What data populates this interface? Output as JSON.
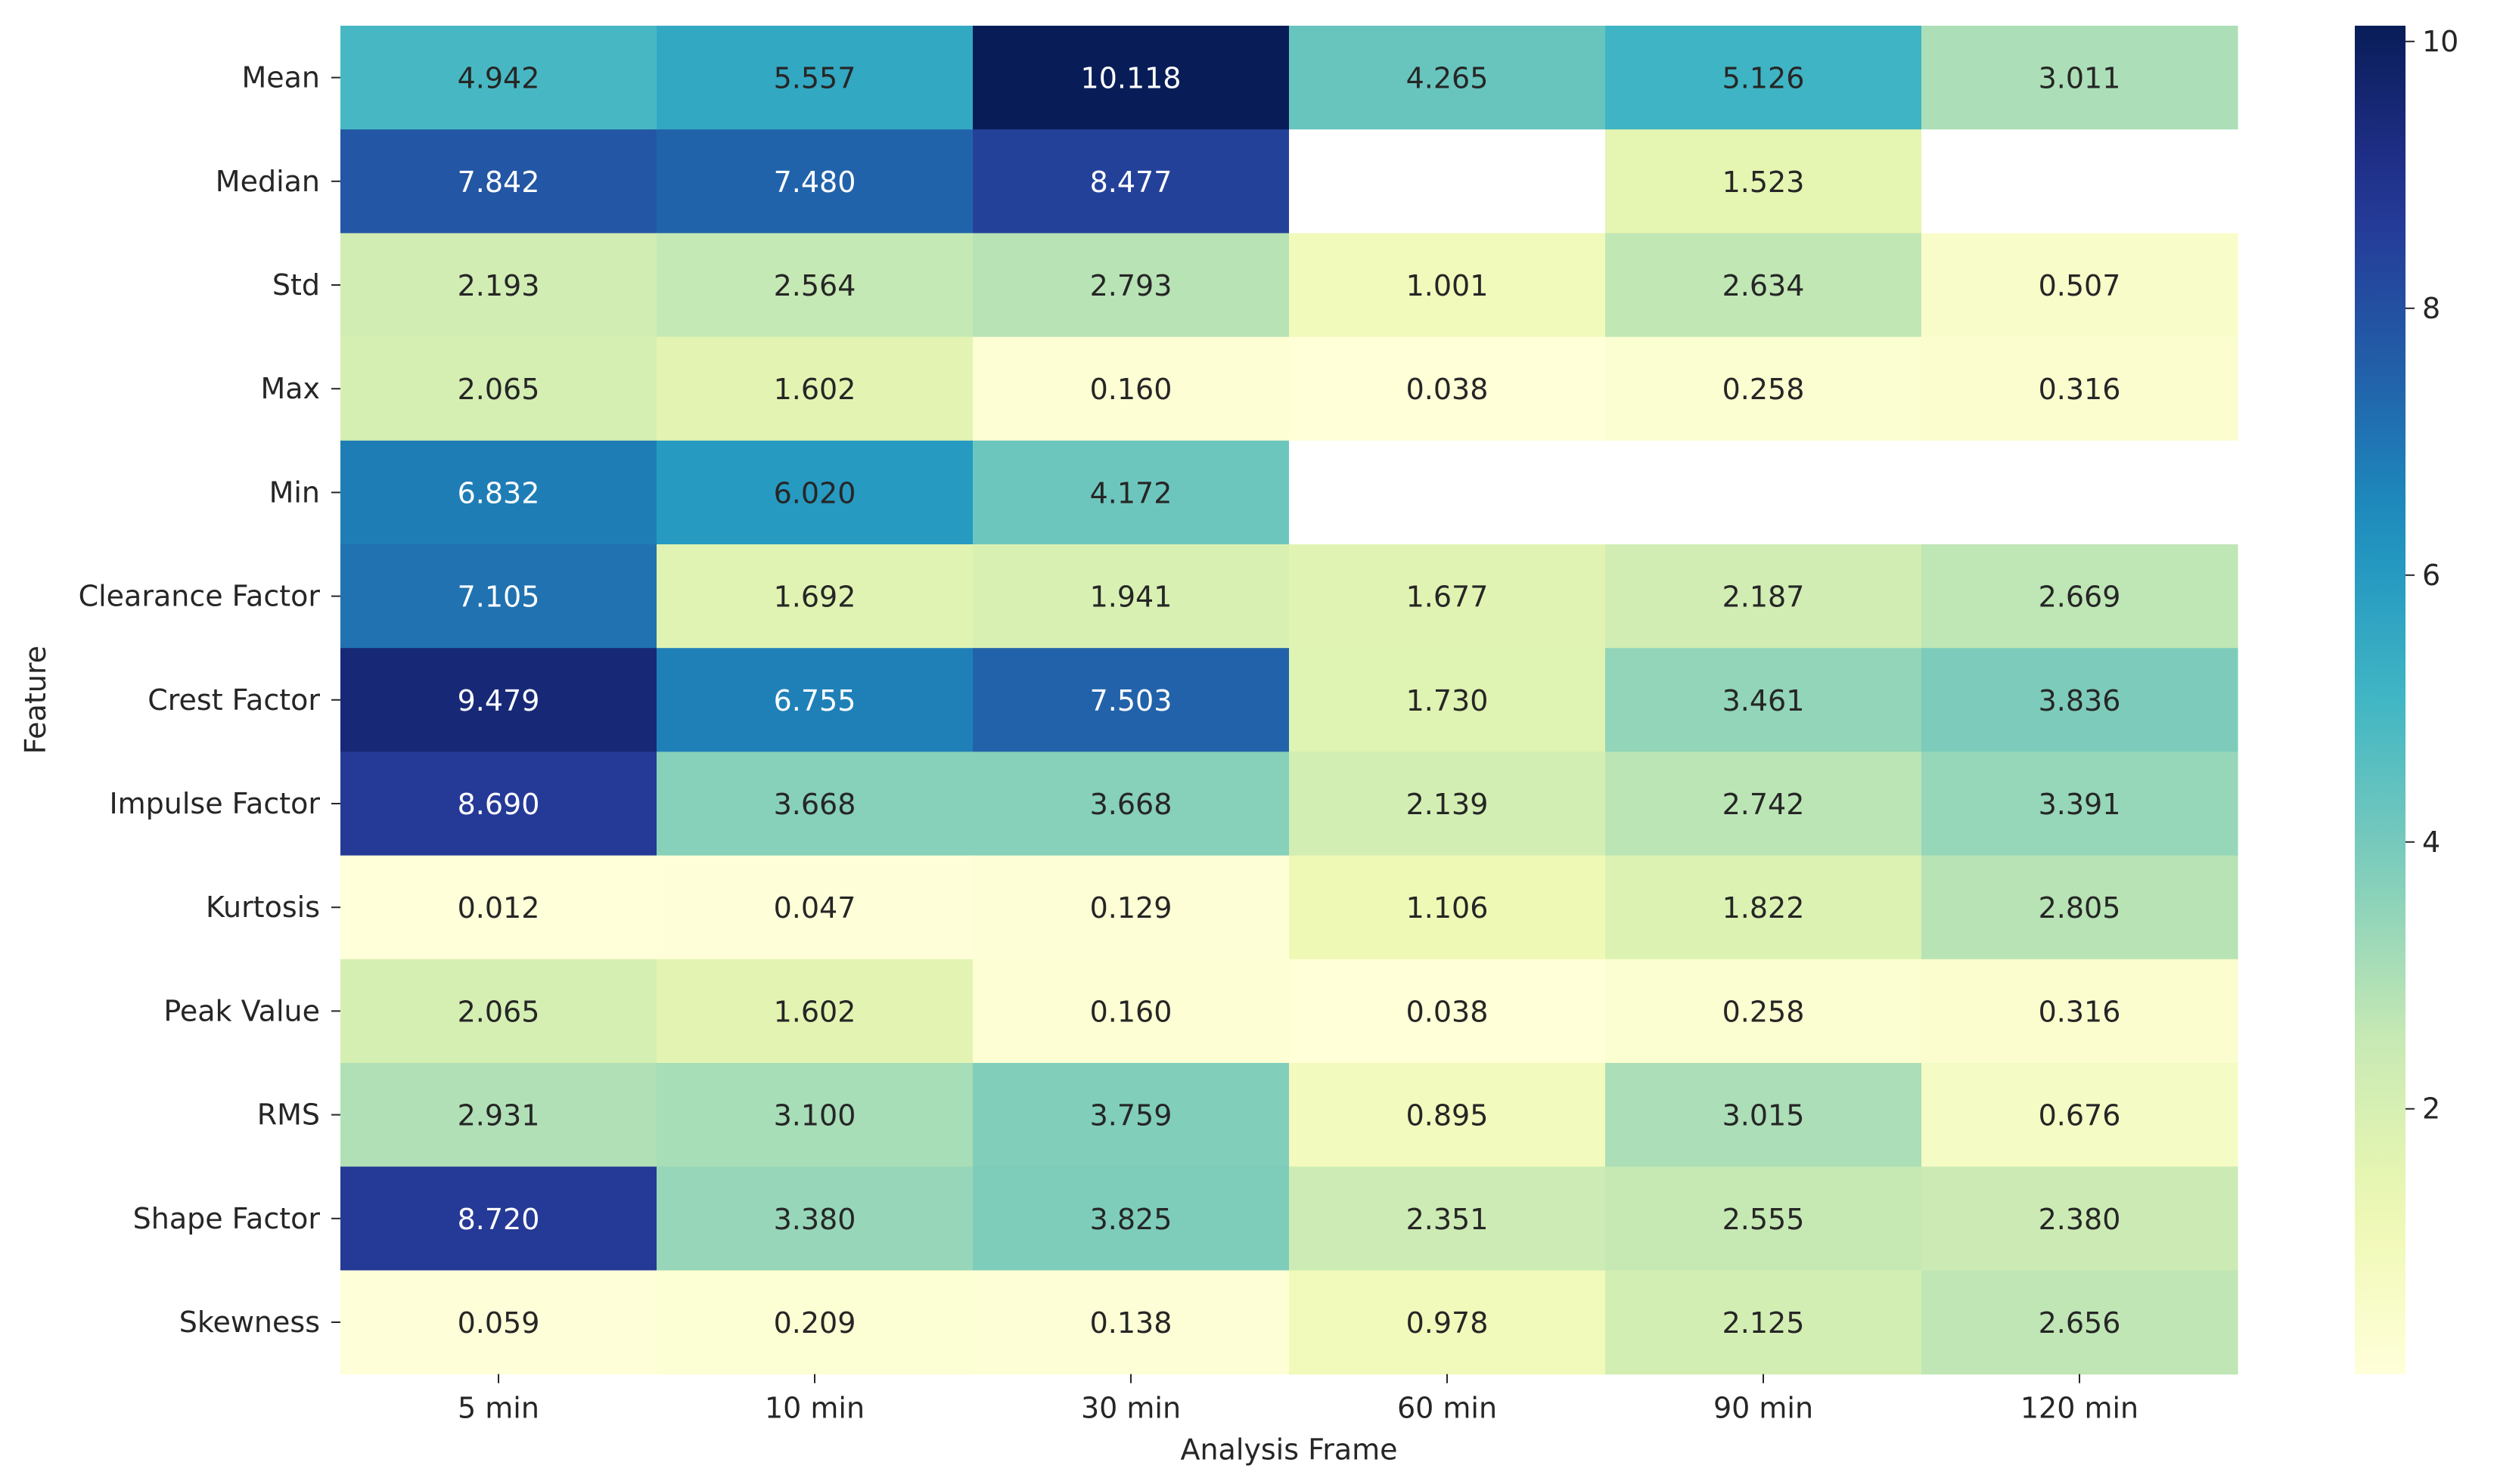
{
  "chart_data": {
    "type": "heatmap",
    "title": "",
    "xlabel": "Analysis Frame",
    "ylabel": "Feature",
    "columns": [
      "5 min",
      "10 min",
      "30 min",
      "60 min",
      "90 min",
      "120 min"
    ],
    "rows": [
      "Mean",
      "Median",
      "Std",
      "Max",
      "Min",
      "Clearance Factor",
      "Crest Factor",
      "Impulse Factor",
      "Kurtosis",
      "Peak Value",
      "RMS",
      "Shape Factor",
      "Skewness"
    ],
    "values": [
      [
        4.942,
        5.557,
        10.118,
        4.265,
        5.126,
        3.011
      ],
      [
        7.842,
        7.48,
        8.477,
        null,
        1.523,
        null
      ],
      [
        2.193,
        2.564,
        2.793,
        1.001,
        2.634,
        0.507
      ],
      [
        2.065,
        1.602,
        0.16,
        0.038,
        0.258,
        0.316
      ],
      [
        6.832,
        6.02,
        4.172,
        null,
        null,
        null
      ],
      [
        7.105,
        1.692,
        1.941,
        1.677,
        2.187,
        2.669
      ],
      [
        9.479,
        6.755,
        7.503,
        1.73,
        3.461,
        3.836
      ],
      [
        8.69,
        3.668,
        3.668,
        2.139,
        2.742,
        3.391
      ],
      [
        0.012,
        0.047,
        0.129,
        1.106,
        1.822,
        2.805
      ],
      [
        2.065,
        1.602,
        0.16,
        0.038,
        0.258,
        0.316
      ],
      [
        2.931,
        3.1,
        3.759,
        0.895,
        3.015,
        0.676
      ],
      [
        8.72,
        3.38,
        3.825,
        2.351,
        2.555,
        2.38
      ],
      [
        0.059,
        0.209,
        0.138,
        0.978,
        2.125,
        2.656
      ]
    ],
    "value_format": "3 decimals",
    "colormap": "YlGnBu",
    "colorbar": {
      "vmin": 0.012,
      "vmax": 10.118,
      "ticks": [
        2,
        4,
        6,
        8,
        10
      ],
      "tick_labels": [
        "2",
        "4",
        "6",
        "8",
        "10"
      ]
    },
    "colors": {
      "light_text": "#ffffff",
      "dark_text": "#262626",
      "missing": "#ffffff"
    }
  }
}
